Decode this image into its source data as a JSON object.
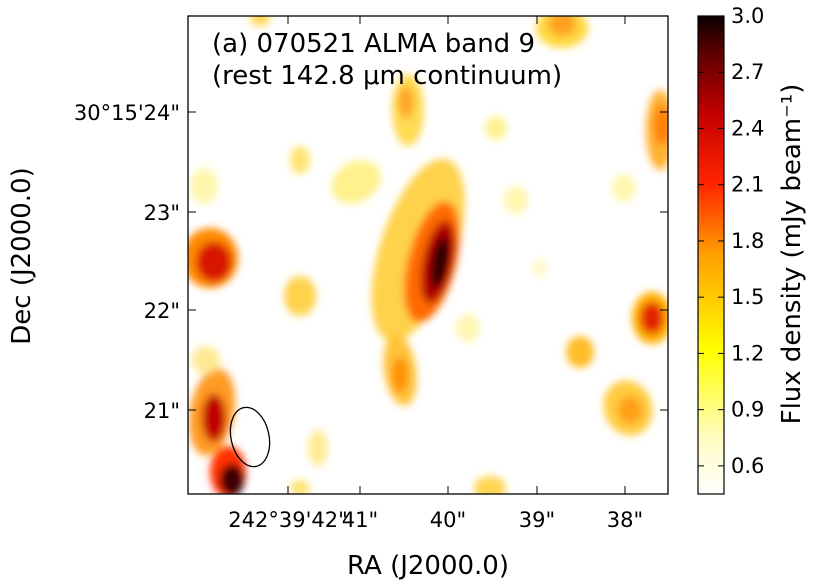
{
  "chart_data": {
    "type": "heatmap",
    "title_lines": [
      "(a) 070521 ALMA band 9",
      "(rest 142.8 μm continuum)"
    ],
    "xlabel": "RA (J2000.0)",
    "ylabel": "Dec (J2000.0)",
    "colorbar": {
      "label": "Flux density (mJy beam⁻¹)",
      "range": [
        0.45,
        3.0
      ],
      "ticks": [
        "0.6",
        "0.9",
        "1.2",
        "1.5",
        "1.8",
        "2.1",
        "2.4",
        "2.7",
        "3.0"
      ],
      "tick_values": [
        0.6,
        0.9,
        1.2,
        1.5,
        1.8,
        2.1,
        2.4,
        2.7,
        3.0
      ],
      "colormap": "hot_r"
    },
    "x_ticks": [
      "242°39'42\"",
      "41\"",
      "40\"",
      "39\"",
      "38\""
    ],
    "y_ticks": [
      "30°15'24\"",
      "23\"",
      "22\"",
      "21\""
    ],
    "beam": {
      "shape": "ellipse",
      "location": "bottom-left"
    },
    "peak_flux": 3.0
  }
}
